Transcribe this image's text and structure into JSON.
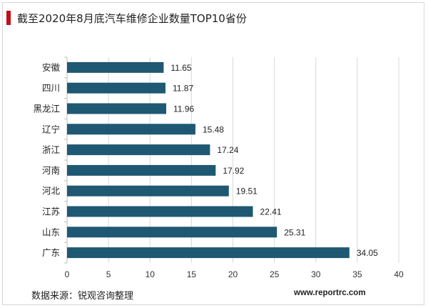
{
  "header": {
    "title": "截至2020年8月底汽车维修企业数量TOP10省份"
  },
  "footer": {
    "source": "数据来源：锐观咨询整理",
    "website": "www.reportrc.com"
  },
  "colors": {
    "bar": "#1f5873",
    "accent": "#c0101a",
    "grid": "#d9d9d9"
  },
  "chart_data": {
    "type": "bar",
    "orientation": "horizontal",
    "title": "截至2020年8月底汽车维修企业数量TOP10省份",
    "xlabel": "",
    "ylabel": "",
    "categories": [
      "安徽",
      "四川",
      "黑龙江",
      "辽宁",
      "浙江",
      "河南",
      "河北",
      "江苏",
      "山东",
      "广东"
    ],
    "values": [
      11.65,
      11.87,
      11.96,
      15.48,
      17.24,
      17.92,
      19.51,
      22.41,
      25.31,
      34.05
    ],
    "value_labels": [
      "11.65",
      "11.87",
      "11.96",
      "15.48",
      "17.24",
      "17.92",
      "19.51",
      "22.41",
      "25.31",
      "34.05"
    ],
    "xlim": [
      0,
      40
    ],
    "xticks": [
      0,
      5,
      10,
      15,
      20,
      25,
      30,
      35,
      40
    ],
    "grid": true,
    "legend": "none"
  }
}
